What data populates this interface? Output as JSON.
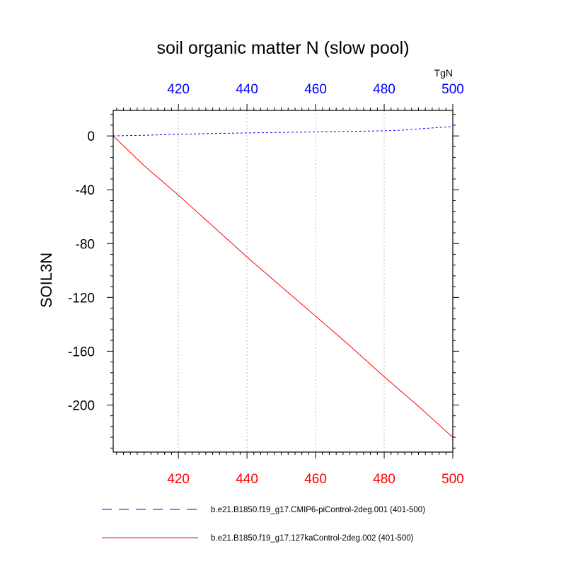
{
  "chart_data": {
    "type": "line",
    "title": "soil organic matter N (slow pool)",
    "ylabel": "SOIL3N",
    "units": "TgN",
    "xlim": [
      401,
      500
    ],
    "ylim": [
      -235,
      19
    ],
    "x_ticks": [
      420,
      440,
      460,
      480,
      500
    ],
    "y_ticks": [
      0,
      -40,
      -80,
      -120,
      -160,
      -200
    ],
    "grid": "vertical dotted at x ticks",
    "legend_position": "bottom",
    "colors": {
      "top_axis": "#0000ff",
      "bottom_axis": "#ff0000",
      "series_1": "#0000ff",
      "series_2": "#ff0000"
    },
    "series": [
      {
        "name": "b.e21.B1850.f19_g17.CMIP6-piControl-2deg.001 (401-500)",
        "style": "dashed",
        "color": "#0000ff",
        "x": [
          401,
          410,
          420,
          430,
          440,
          450,
          460,
          470,
          480,
          485,
          490,
          500
        ],
        "y": [
          0,
          0.5,
          1.2,
          1.8,
          2.2,
          2.6,
          3.0,
          3.4,
          3.8,
          4.2,
          5.2,
          7.0
        ]
      },
      {
        "name": "b.e21.B1850.f19_g17.127kaControl-2deg.002 (401-500)",
        "style": "solid",
        "color": "#ff0000",
        "x": [
          401,
          410,
          420,
          430,
          440,
          450,
          460,
          470,
          480,
          490,
          500
        ],
        "y": [
          0,
          -22,
          -44,
          -67,
          -90,
          -112,
          -134,
          -156,
          -179,
          -201,
          -224
        ]
      }
    ]
  }
}
